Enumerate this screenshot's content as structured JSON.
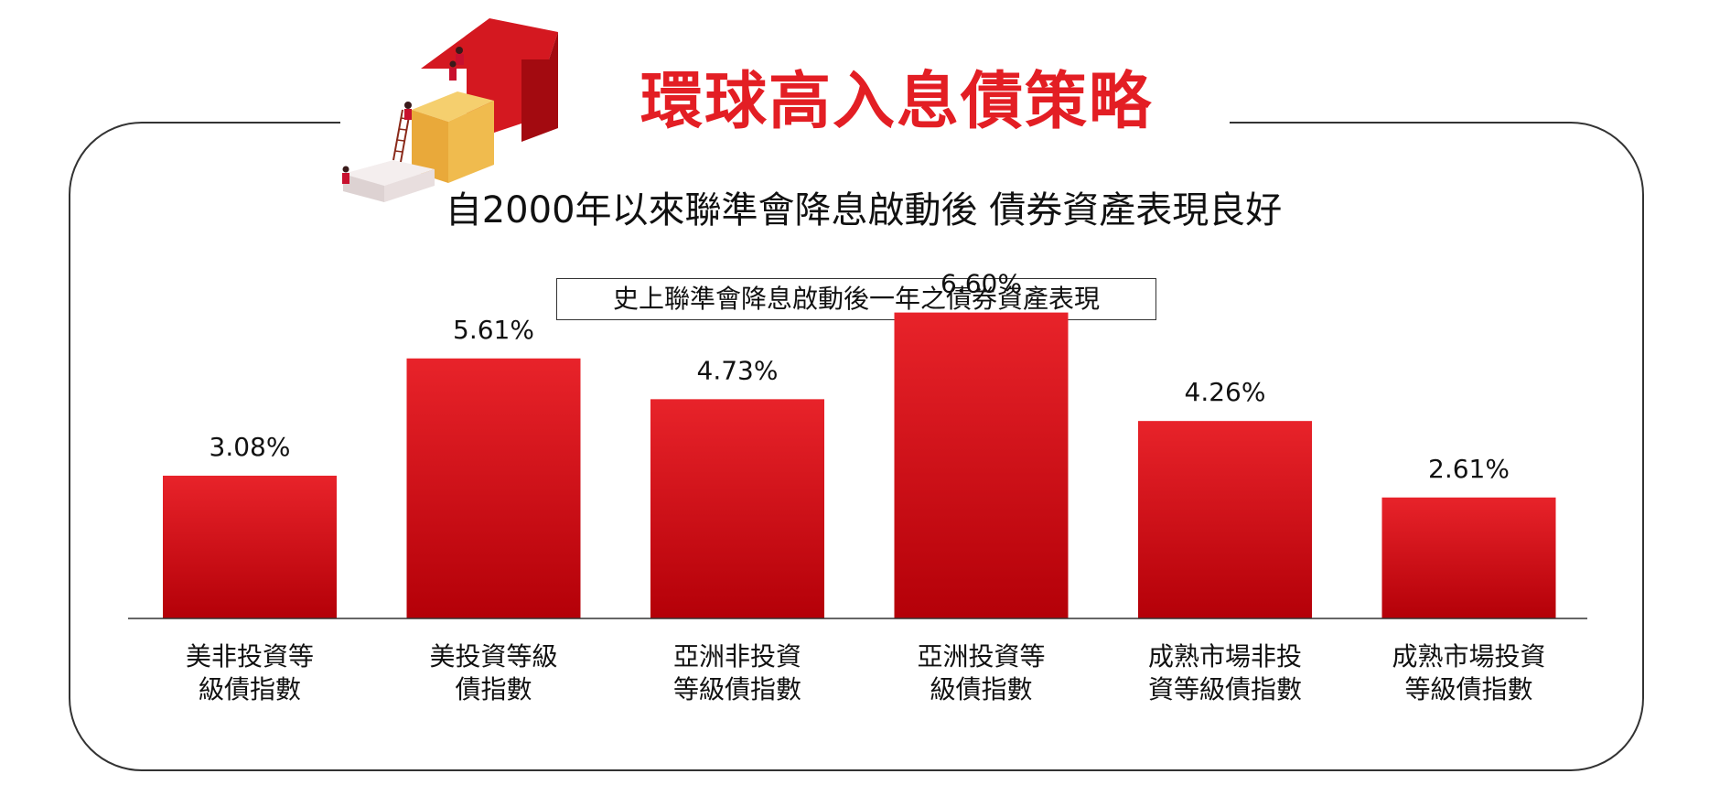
{
  "header": {
    "title": "環球高入息債策略",
    "subtitle": "自2000年以來聯準會降息啟動後  債券資產表現良好"
  },
  "colors": {
    "accent": "#e31e24",
    "bar_top": "#e8232a",
    "bar_bottom": "#b40008"
  },
  "chart_data": {
    "type": "bar",
    "title": "史上聯準會降息啟動後一年之債券資產表現",
    "categories": [
      [
        "美非投資等",
        "級債指數"
      ],
      [
        "美投資等級",
        "債指數"
      ],
      [
        "亞洲非投資",
        "等級債指數"
      ],
      [
        "亞洲投資等",
        "級債指數"
      ],
      [
        "成熟市場非投",
        "資等級債指數"
      ],
      [
        "成熟市場投資",
        "等級債指數"
      ]
    ],
    "values": [
      3.08,
      5.61,
      4.73,
      6.6,
      4.26,
      2.61
    ],
    "data_labels": [
      "3.08%",
      "5.61%",
      "4.73%",
      "6.60%",
      "4.26%",
      "2.61%"
    ],
    "ylim": [
      0,
      7.5
    ],
    "xlabel": "",
    "ylabel": "",
    "grid": false,
    "legend": "none"
  }
}
